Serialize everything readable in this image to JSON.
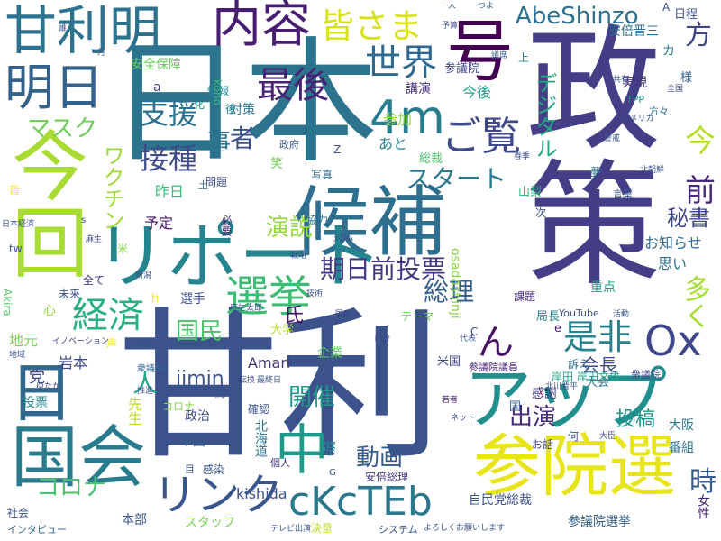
{
  "words": [
    {
      "text": "日本",
      "color": "#2c738e"
    },
    {
      "text": "政策",
      "color": "#433e85"
    },
    {
      "text": "甘利",
      "color": "#3b528b"
    },
    {
      "text": "候補",
      "color": "#2e6e8e"
    },
    {
      "text": "参院選",
      "color": "#e7e419"
    },
    {
      "text": "アップ",
      "color": "#218f8d"
    },
    {
      "text": "今回",
      "color": "#a8db34"
    },
    {
      "text": "リポート",
      "color": "#25858e"
    },
    {
      "text": "国会",
      "color": "#297b8e"
    },
    {
      "text": "甘利明",
      "color": "#2c728e"
    },
    {
      "text": "明日",
      "color": "#33628d"
    },
    {
      "text": "内容",
      "color": "#481f70"
    },
    {
      "text": "号",
      "color": "#440154"
    },
    {
      "text": "日",
      "color": "#31688e"
    },
    {
      "text": "中",
      "color": "#1f9a8a"
    },
    {
      "text": "4m",
      "color": "#287c8e"
    },
    {
      "text": "Ox",
      "color": "#3f4788"
    },
    {
      "text": "cKcTEb",
      "color": "#2a778e"
    },
    {
      "text": "リンク",
      "color": "#39568c"
    },
    {
      "text": "選挙",
      "color": "#3dbc74"
    },
    {
      "text": "経済",
      "color": "#2ab07f"
    },
    {
      "text": "最後",
      "color": "#482374"
    },
    {
      "text": "皆さま",
      "color": "#d8e219"
    },
    {
      "text": "AbeShinzo",
      "color": "#2d708e"
    },
    {
      "text": "世界",
      "color": "#31688e"
    },
    {
      "text": "ご覧",
      "color": "#3f4889"
    },
    {
      "text": "期日前投票",
      "color": "#453882"
    },
    {
      "text": "是非",
      "color": "#26828e"
    },
    {
      "text": "ん",
      "color": "#471365"
    },
    {
      "text": "方",
      "color": "#404588"
    },
    {
      "text": "前",
      "color": "#482878"
    },
    {
      "text": "今",
      "color": "#b5de2b"
    },
    {
      "text": "支援",
      "color": "#2d708e"
    },
    {
      "text": "接種",
      "color": "#3e4a89"
    },
    {
      "text": "マスク",
      "color": "#6ece58"
    },
    {
      "text": "ワクチン",
      "color": "#a0da39"
    },
    {
      "text": "事",
      "color": "#2b748e"
    },
    {
      "text": "者",
      "color": "#3b518b"
    },
    {
      "text": "スタート",
      "color": "#29798e"
    },
    {
      "text": "演説",
      "color": "#93d741"
    },
    {
      "text": "総理",
      "color": "#355f8d"
    },
    {
      "text": "出演",
      "color": "#472a7a"
    },
    {
      "text": "人",
      "color": "#22a884"
    },
    {
      "text": "コロナ",
      "color": "#4ac16d"
    },
    {
      "text": "国民",
      "color": "#4ac16d"
    },
    {
      "text": "時",
      "color": "#375a8c"
    },
    {
      "text": "秘書",
      "color": "#3f4788"
    },
    {
      "text": "デジタル",
      "color": "#22a884"
    },
    {
      "text": "多く",
      "color": "#a5db36"
    },
    {
      "text": "動画",
      "color": "#365c8d"
    },
    {
      "text": "開催",
      "color": "#1f988b"
    },
    {
      "text": "jimin",
      "color": "#3b528b"
    },
    {
      "text": "Amari",
      "color": "#46337e"
    },
    {
      "text": "会長",
      "color": "#3e4c8a"
    },
    {
      "text": "投稿",
      "color": "#1f948c"
    },
    {
      "text": "kishida",
      "color": "#3b528b"
    },
    {
      "text": "安全保障",
      "color": "#6ccd5a"
    },
    {
      "text": "安倍晋三",
      "color": "#2f6b8e"
    },
    {
      "text": "情報",
      "color": "#23888e"
    },
    {
      "text": "対策",
      "color": "#2c718e"
    },
    {
      "text": "講演",
      "color": "#46307e"
    },
    {
      "text": "実現",
      "color": "#46307e"
    },
    {
      "text": "参議院",
      "color": "#404688"
    },
    {
      "text": "今後",
      "color": "#1fa188"
    },
    {
      "text": "参加",
      "color": "#8bd646"
    },
    {
      "text": "あと",
      "color": "#27808e"
    },
    {
      "text": "総裁",
      "color": "#4ac16d"
    },
    {
      "text": "昨日",
      "color": "#3aba76"
    },
    {
      "text": "問題",
      "color": "#3e4a89"
    },
    {
      "text": "予定",
      "color": "#48186a"
    },
    {
      "text": "必要",
      "color": "#482576"
    },
    {
      "text": "協力",
      "color": "#2a768e"
    },
    {
      "text": "写真",
      "color": "#31678e"
    },
    {
      "text": "お知らせ",
      "color": "#2f6c8e"
    },
    {
      "text": "思い",
      "color": "#2c728e"
    },
    {
      "text": "重点",
      "color": "#1e9c89"
    },
    {
      "text": "課題",
      "color": "#472c7a"
    },
    {
      "text": "局長",
      "color": "#24868e"
    },
    {
      "text": "YouTube",
      "color": "#3c4f8a"
    },
    {
      "text": "テーマ",
      "color": "#65cb5e"
    },
    {
      "text": "osadashinji",
      "color": "#8bd646"
    },
    {
      "text": "選手",
      "color": "#3d4e8a"
    },
    {
      "text": "氏",
      "color": "#471063"
    },
    {
      "text": "大学",
      "color": "#b8de29"
    },
    {
      "text": "企業",
      "color": "#5ec962"
    },
    {
      "text": "地元",
      "color": "#7ad151"
    },
    {
      "text": "党",
      "color": "#3c4f8a"
    },
    {
      "text": "岩本",
      "color": "#3e4a89"
    },
    {
      "text": "投票",
      "color": "#23898e"
    },
    {
      "text": "先生",
      "color": "#bddf26"
    },
    {
      "text": "政治",
      "color": "#3f4889"
    },
    {
      "text": "中国",
      "color": "#355e8d"
    },
    {
      "text": "北海道",
      "color": "#2d708e"
    },
    {
      "text": "確認",
      "color": "#3b528b"
    },
    {
      "text": "際",
      "color": "#24878e"
    },
    {
      "text": "感謝",
      "color": "#45337d"
    },
    {
      "text": "大会",
      "color": "#2c738e"
    },
    {
      "text": "岸田",
      "color": "#20a386"
    },
    {
      "text": "岸田文雄",
      "color": "#20a386"
    },
    {
      "text": "参議院議員",
      "color": "#482475"
    },
    {
      "text": "米国",
      "color": "#3e4989"
    },
    {
      "text": "訴え",
      "color": "#306a8e"
    },
    {
      "text": "大阪",
      "color": "#2a788e"
    },
    {
      "text": "番組",
      "color": "#2d718e"
    },
    {
      "text": "女性",
      "color": "#482677"
    },
    {
      "text": "自民党総裁",
      "color": "#3b528b"
    },
    {
      "text": "参議院選挙",
      "color": "#34618d"
    },
    {
      "text": "本部",
      "color": "#3a548c"
    },
    {
      "text": "スタッフ",
      "color": "#7ad151"
    },
    {
      "text": "コロナ",
      "color": "#86d549"
    },
    {
      "text": "社会",
      "color": "#3b518b"
    },
    {
      "text": "インタビュー",
      "color": "#31688e"
    },
    {
      "text": "安倍総理",
      "color": "#46337e"
    },
    {
      "text": "感染",
      "color": "#39558c"
    },
    {
      "text": "Akira",
      "color": "#52c569"
    },
    {
      "text": "未来",
      "color": "#3a548c"
    },
    {
      "text": "全て",
      "color": "#46317e"
    },
    {
      "text": "山梨",
      "color": "#2fb47c"
    },
    {
      "text": "koho",
      "color": "#35b779"
    },
    {
      "text": "笑",
      "color": "#75d054"
    },
    {
      "text": "日程",
      "color": "#3d4e8a"
    },
    {
      "text": "カ",
      "color": "#297a8e"
    },
    {
      "text": "上",
      "color": "#26818e"
    },
    {
      "text": "化",
      "color": "#238a8d"
    },
    {
      "text": "後",
      "color": "#26828e"
    },
    {
      "text": "政府",
      "color": "#3a548c"
    },
    {
      "text": "対応",
      "color": "#3b518b"
    },
    {
      "text": "Z",
      "color": "#39558c"
    },
    {
      "text": "様",
      "color": "#33638d"
    },
    {
      "text": "夢",
      "color": "#2a768e"
    },
    {
      "text": "言葉",
      "color": "#3b528b"
    },
    {
      "text": "TPP",
      "color": "#21918c"
    },
    {
      "text": "方々",
      "color": "#2c738e"
    },
    {
      "text": "為",
      "color": "#3a548c"
    },
    {
      "text": "国",
      "color": "#34618d"
    },
    {
      "text": "何",
      "color": "#3d4d8a"
    },
    {
      "text": "お話",
      "color": "#3f4788"
    },
    {
      "text": "個人",
      "color": "#46327e"
    },
    {
      "text": "システム",
      "color": "#3a548c"
    },
    {
      "text": "決意",
      "color": "#bddf26"
    },
    {
      "text": "a",
      "color": "#404688"
    },
    {
      "text": "i",
      "color": "#3f4889"
    },
    {
      "text": "e",
      "color": "#482173"
    },
    {
      "text": "h",
      "color": "#fde725"
    },
    {
      "text": "tw",
      "color": "#3b528b"
    },
    {
      "text": "米",
      "color": "#89d548"
    },
    {
      "text": "心",
      "color": "#95d840"
    },
    {
      "text": "声",
      "color": "#fde725"
    },
    {
      "text": "目",
      "color": "#3a548c"
    },
    {
      "text": "土",
      "color": "#31688e"
    },
    {
      "text": "A",
      "color": "#3b528b"
    },
    {
      "text": "一人",
      "color": "#3a548c"
    },
    {
      "text": "つよ",
      "color": "#33638d"
    },
    {
      "text": "誰",
      "color": "#3a548c"
    },
    {
      "text": "月",
      "color": "#3a548c"
    },
    {
      "text": "予算",
      "color": "#404688"
    },
    {
      "text": "議席",
      "color": "#365c8d"
    },
    {
      "text": "皆",
      "color": "#fde725"
    },
    {
      "text": "北川晋平",
      "color": "#3b528b"
    },
    {
      "text": "衆議院",
      "color": "#3f4788"
    },
    {
      "text": "アメリカ",
      "color": "#3b528b"
    },
    {
      "text": "全国",
      "color": "#3e4a89"
    },
    {
      "text": "日本経済",
      "color": "#3b528b"
    },
    {
      "text": "麻生",
      "color": "#3f4788"
    },
    {
      "text": "衆議院",
      "color": "#31688e"
    },
    {
      "text": "ゆたか",
      "color": "#404688"
    },
    {
      "text": "推進",
      "color": "#3b528b"
    },
    {
      "text": "新潟",
      "color": "#3b528b"
    },
    {
      "text": "イノベーション",
      "color": "#3f4788"
    },
    {
      "text": "地域",
      "color": "#3b528b"
    },
    {
      "text": "麻生太郎",
      "color": "#3b528b"
    },
    {
      "text": "転換",
      "color": "#3f4788"
    },
    {
      "text": "最終日",
      "color": "#3b528b"
    },
    {
      "text": "国家",
      "color": "#3e4a89"
    },
    {
      "text": "技術",
      "color": "#3b528b"
    },
    {
      "text": "戦略",
      "color": "#3a548c"
    },
    {
      "text": "自分",
      "color": "#3f4788"
    },
    {
      "text": "若者",
      "color": "#482475"
    },
    {
      "text": "代表",
      "color": "#3b528b"
    },
    {
      "text": "ネット",
      "color": "#3b528b"
    },
    {
      "text": "大臣",
      "color": "#3f4788"
    },
    {
      "text": "北朝鮮",
      "color": "#3b528b"
    },
    {
      "text": "活動",
      "color": "#3a548c"
    },
    {
      "text": "警戒",
      "color": "#3b528b"
    },
    {
      "text": "G",
      "color": "#3b528b"
    },
    {
      "text": "C",
      "color": "#3b528b"
    },
    {
      "text": "テレビ出演",
      "color": "#3a548c"
    },
    {
      "text": "よろしくお願いします",
      "color": "#3a548c"
    },
    {
      "text": "共有",
      "color": "#3b528b"
    },
    {
      "text": "次",
      "color": "#3a548c"
    },
    {
      "text": "春季",
      "color": "#3b528b"
    },
    {
      "text": "s",
      "color": "#3b528b"
    },
    {
      "text": "お越し",
      "color": "#3b528b"
    }
  ]
}
